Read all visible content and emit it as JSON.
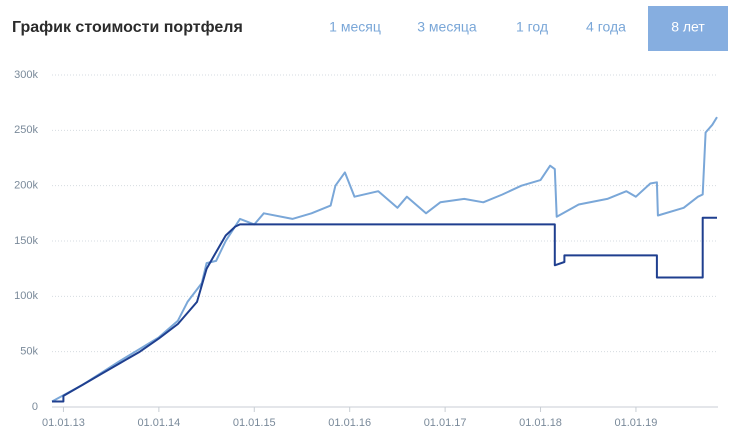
{
  "chart_data": {
    "type": "line",
    "title": "График стоимости портфеля",
    "tabs": [
      "1 месяц",
      "3 месяца",
      "1 год",
      "4 года",
      "8 лет"
    ],
    "active_tab": 4,
    "xlim": [
      2012.88,
      2019.86
    ],
    "ylim": [
      0,
      300000
    ],
    "xticks": [
      {
        "value": 2013,
        "label": "01.01.13"
      },
      {
        "value": 2014,
        "label": "01.01.14"
      },
      {
        "value": 2015,
        "label": "01.01.15"
      },
      {
        "value": 2016,
        "label": "01.01.16"
      },
      {
        "value": 2017,
        "label": "01.01.17"
      },
      {
        "value": 2018,
        "label": "01.01.18"
      },
      {
        "value": 2019,
        "label": "01.01.19"
      }
    ],
    "yticks": [
      0,
      {
        "value": 50000,
        "label": "50k"
      },
      {
        "value": 100000,
        "label": "100k"
      },
      {
        "value": 150000,
        "label": "150k"
      },
      {
        "value": 200000,
        "label": "200k"
      },
      {
        "value": 250000,
        "label": "250k"
      },
      {
        "value": 300000,
        "label": "300k"
      }
    ],
    "grid": true,
    "series": [
      {
        "color": "#7aa7d8",
        "x": [
          2012.88,
          2013.2,
          2013.6,
          2014.0,
          2014.2,
          2014.3,
          2014.45,
          2014.5,
          2014.6,
          2014.7,
          2014.85,
          2015.0,
          2015.1,
          2015.4,
          2015.6,
          2015.8,
          2015.85,
          2015.95,
          2016.05,
          2016.3,
          2016.5,
          2016.6,
          2016.8,
          2016.95,
          2017.2,
          2017.4,
          2017.6,
          2017.8,
          2018.0,
          2018.1,
          2018.15,
          2018.17,
          2018.4,
          2018.7,
          2018.9,
          2019.0,
          2019.15,
          2019.22,
          2019.23,
          2019.5,
          2019.65,
          2019.7,
          2019.73,
          2019.8,
          2019.85
        ],
        "values": [
          5000,
          20000,
          42000,
          63000,
          78000,
          95000,
          112000,
          130000,
          132000,
          150000,
          170000,
          165000,
          175000,
          170000,
          175000,
          182000,
          200000,
          212000,
          190000,
          195000,
          180000,
          190000,
          175000,
          185000,
          188000,
          185000,
          192000,
          200000,
          205000,
          218000,
          215000,
          172000,
          183000,
          188000,
          195000,
          190000,
          202000,
          203000,
          173000,
          180000,
          190000,
          192000,
          248000,
          255000,
          262000
        ]
      },
      {
        "color": "#1f3f8f",
        "x": [
          2012.88,
          2013.0,
          2013.0,
          2013.2,
          2013.4,
          2013.6,
          2013.8,
          2014.0,
          2014.2,
          2014.4,
          2014.5,
          2014.6,
          2014.7,
          2014.8,
          2014.85,
          2018.15,
          2018.15,
          2018.25,
          2018.25,
          2019.22,
          2019.22,
          2019.7,
          2019.7,
          2019.85
        ],
        "values": [
          5000,
          5000,
          10000,
          20000,
          30000,
          40000,
          50000,
          62000,
          75000,
          95000,
          125000,
          140000,
          155000,
          163000,
          165000,
          165000,
          128000,
          131000,
          137000,
          137000,
          117000,
          117000,
          171000,
          171000
        ]
      }
    ]
  }
}
